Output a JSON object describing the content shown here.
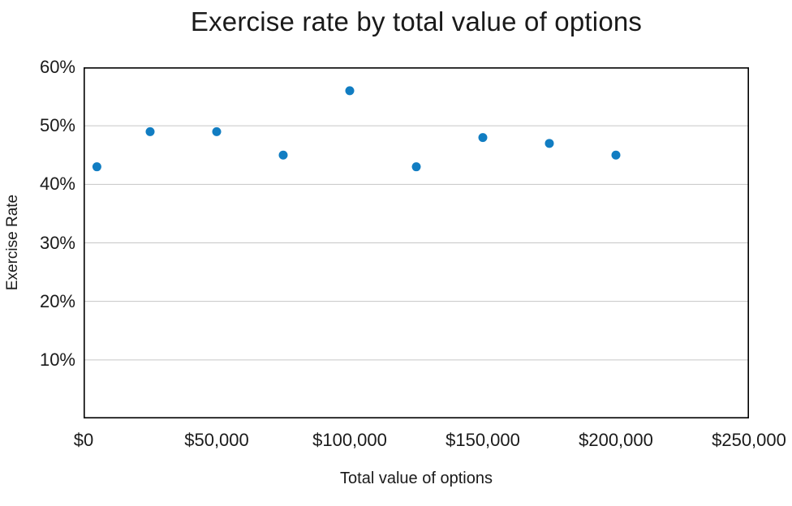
{
  "chart_data": {
    "type": "scatter",
    "title": "Exercise rate by total value of options",
    "xlabel": "Total value of options",
    "ylabel": "Exercise Rate",
    "x": [
      5000,
      25000,
      50000,
      75000,
      100000,
      125000,
      150000,
      175000,
      200000
    ],
    "y": [
      43,
      49,
      49,
      45,
      56,
      43,
      48,
      47,
      45
    ],
    "y_unit": "%",
    "xlim": [
      0,
      250000
    ],
    "ylim": [
      0,
      60
    ],
    "x_ticks": [
      {
        "value": 0,
        "label": "$0"
      },
      {
        "value": 50000,
        "label": "$50,000"
      },
      {
        "value": 100000,
        "label": "$100,000"
      },
      {
        "value": 150000,
        "label": "$150,000"
      },
      {
        "value": 200000,
        "label": "$200,000"
      },
      {
        "value": 250000,
        "label": "$250,000"
      }
    ],
    "y_ticks": [
      {
        "value": 10,
        "label": "10%"
      },
      {
        "value": 20,
        "label": "20%"
      },
      {
        "value": 30,
        "label": "30%"
      },
      {
        "value": 40,
        "label": "40%"
      },
      {
        "value": 50,
        "label": "50%"
      },
      {
        "value": 60,
        "label": "60%"
      }
    ],
    "grid": "horizontal",
    "legend": "none",
    "colors": {
      "marker": "#117dc2",
      "gridline": "#c6c6c6",
      "axis_border": "#000000",
      "text": "#1a1a1a",
      "background": "#ffffff"
    }
  }
}
